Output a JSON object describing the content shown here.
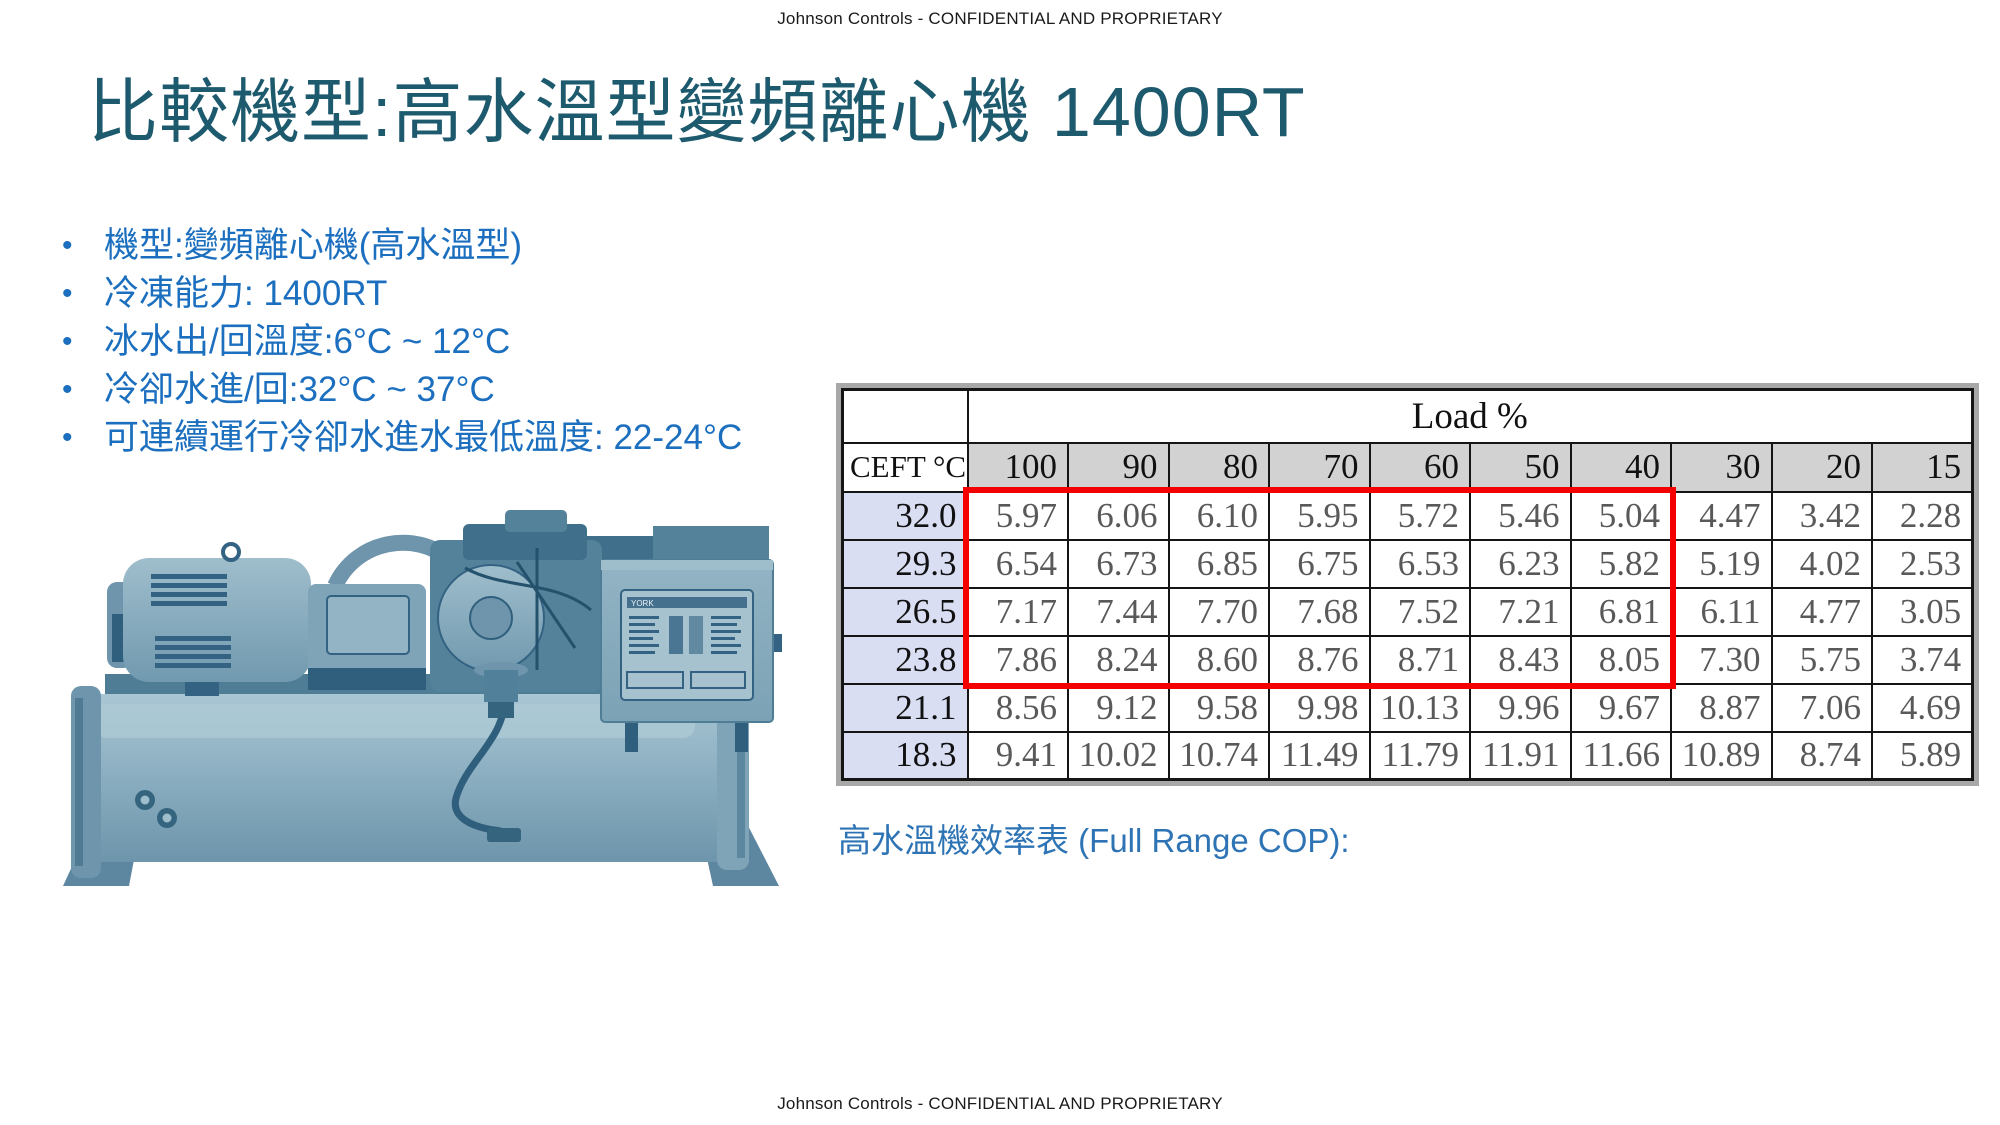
{
  "header": {
    "confidential": "Johnson Controls - CONFIDENTIAL AND PROPRIETARY"
  },
  "footer": {
    "confidential": "Johnson Controls - CONFIDENTIAL AND PROPRIETARY"
  },
  "title": "比較機型:高水溫型變頻離心機 1400RT",
  "bullets": [
    "機型:變頻離心機(高水溫型)",
    "冷凍能力: 1400RT",
    "冰水出/回溫度:6°C ~ 12°C",
    "冷卻水進/回:32°C ~ 37°C",
    "可連續運行冷卻水進水最低溫度: 22-24°C"
  ],
  "machine": {
    "brand_label": "YORK",
    "description": "duotone blue photo of centrifugal chiller with motor, compressor and control panel on a horizontal shell"
  },
  "table": {
    "caption": "高水溫機效率表 (Full Range COP):",
    "load_header": "Load %",
    "row_header": "CEFT °C",
    "columns": [
      "100",
      "90",
      "80",
      "70",
      "60",
      "50",
      "40",
      "30",
      "20",
      "15"
    ],
    "rows": [
      {
        "ceft": "32.0",
        "values": [
          "5.97",
          "6.06",
          "6.10",
          "5.95",
          "5.72",
          "5.46",
          "5.04",
          "4.47",
          "3.42",
          "2.28"
        ]
      },
      {
        "ceft": "29.3",
        "values": [
          "6.54",
          "6.73",
          "6.85",
          "6.75",
          "6.53",
          "6.23",
          "5.82",
          "5.19",
          "4.02",
          "2.53"
        ]
      },
      {
        "ceft": "26.5",
        "values": [
          "7.17",
          "7.44",
          "7.70",
          "7.68",
          "7.52",
          "7.21",
          "6.81",
          "6.11",
          "4.77",
          "3.05"
        ]
      },
      {
        "ceft": "23.8",
        "values": [
          "7.86",
          "8.24",
          "8.60",
          "8.76",
          "8.71",
          "8.43",
          "8.05",
          "7.30",
          "5.75",
          "3.74"
        ]
      },
      {
        "ceft": "21.1",
        "values": [
          "8.56",
          "9.12",
          "9.58",
          "9.98",
          "10.13",
          "9.96",
          "9.67",
          "8.87",
          "7.06",
          "4.69"
        ]
      },
      {
        "ceft": "18.3",
        "values": [
          "9.41",
          "10.02",
          "10.74",
          "11.49",
          "11.79",
          "11.91",
          "11.66",
          "10.89",
          "8.74",
          "5.89"
        ]
      }
    ],
    "highlight": {
      "from_column": "100",
      "to_column": "40",
      "from_row": "32.0",
      "to_row": "23.8"
    }
  },
  "colors": {
    "title": "#1d5a6e",
    "bullet": "#1b6fbe",
    "caption": "#2e74b5",
    "red": "#f40000",
    "header_bg": "#d2d2d2",
    "ceft_bg": "#d9def3",
    "value_text": "#595959"
  }
}
